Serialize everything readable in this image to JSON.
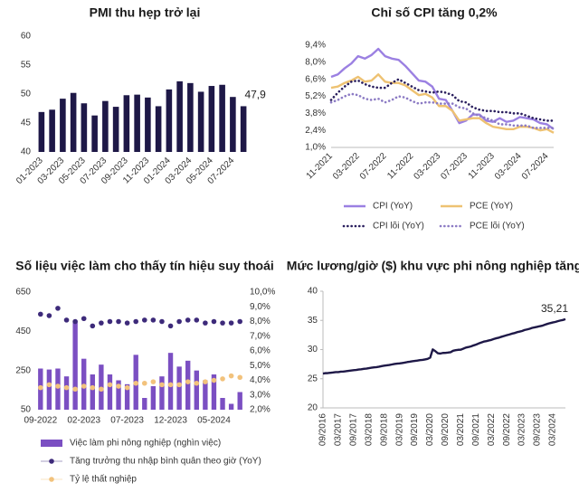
{
  "chart_data": [
    {
      "type": "bar",
      "title": "PMI thu hẹp trở lại",
      "categories": [
        "01-2023",
        null,
        "03-2023",
        null,
        "05-2023",
        null,
        "07-2023",
        null,
        "09-2023",
        null,
        "11-2023",
        null,
        "01-2024",
        null,
        "03-2024",
        null,
        "05-2024",
        null,
        "07-2024",
        null
      ],
      "values": [
        46.9,
        47.3,
        49.2,
        50.2,
        48.4,
        46.3,
        48.8,
        47.8,
        49.8,
        49.9,
        49.4,
        47.9,
        50.8,
        52.2,
        51.9,
        50.4,
        51.4,
        51.6,
        49.5,
        47.9
      ],
      "value_labels": {
        "19": "47,9"
      },
      "color": "#1e1847",
      "ylim": [
        40,
        60
      ],
      "yticks": [
        40,
        45,
        50,
        55,
        60
      ]
    },
    {
      "type": "line",
      "title": "Chỉ số CPI tăng 0,2%",
      "categories": [
        "11-2021",
        null,
        null,
        null,
        "03-2022",
        null,
        null,
        null,
        "07-2022",
        null,
        null,
        null,
        "11-2022",
        null,
        null,
        null,
        "03-2023",
        null,
        null,
        null,
        "07-2023",
        null,
        null,
        null,
        "11-2023",
        null,
        null,
        null,
        "03-2024",
        null,
        null,
        null,
        "07-2024",
        null
      ],
      "series": [
        {
          "name": "CPI (YoY)",
          "color": "#9b80e2",
          "style": "solid",
          "values": [
            6.8,
            7.0,
            7.5,
            7.9,
            8.5,
            8.3,
            8.6,
            9.1,
            8.5,
            8.3,
            8.2,
            7.7,
            7.1,
            6.5,
            6.4,
            6.0,
            5.0,
            4.9,
            4.0,
            3.0,
            3.2,
            3.7,
            3.7,
            3.2,
            3.1,
            3.4,
            3.1,
            3.2,
            3.5,
            3.4,
            3.3,
            3.0,
            2.9,
            2.5
          ]
        },
        {
          "name": "PCE (YoY)",
          "color": "#eec272",
          "style": "solid",
          "values": [
            5.9,
            6.0,
            6.3,
            6.5,
            6.8,
            6.4,
            6.5,
            7.0,
            6.4,
            6.3,
            6.3,
            6.1,
            5.7,
            5.3,
            5.4,
            5.1,
            4.4,
            4.4,
            4.0,
            3.2,
            3.3,
            3.4,
            3.4,
            3.0,
            2.7,
            2.6,
            2.5,
            2.5,
            2.7,
            2.7,
            2.6,
            2.4,
            2.5,
            2.2
          ]
        },
        {
          "name": "CPI lõi (YoY)",
          "color": "#2a1f5e",
          "style": "dotted",
          "values": [
            4.9,
            5.5,
            6.0,
            6.4,
            6.5,
            6.2,
            6.0,
            5.9,
            5.9,
            6.3,
            6.6,
            6.3,
            6.0,
            5.7,
            5.6,
            5.5,
            5.6,
            5.5,
            5.3,
            4.8,
            4.7,
            4.3,
            4.1,
            4.0,
            4.0,
            3.9,
            3.9,
            3.8,
            3.8,
            3.6,
            3.4,
            3.3,
            3.2,
            3.2
          ]
        },
        {
          "name": "PCE lõi (YoY)",
          "color": "#8c7bc4",
          "style": "dotted",
          "values": [
            4.7,
            4.9,
            5.2,
            5.4,
            5.3,
            5.0,
            4.9,
            5.0,
            4.7,
            4.9,
            5.2,
            5.1,
            4.8,
            4.6,
            4.7,
            4.7,
            4.6,
            4.6,
            4.6,
            4.3,
            4.2,
            3.8,
            3.6,
            3.4,
            3.2,
            2.9,
            2.9,
            2.8,
            2.8,
            2.8,
            2.6,
            2.6,
            2.6,
            2.6
          ]
        }
      ],
      "ylim": [
        1,
        9.4
      ],
      "yticks": [
        {
          "value": 1,
          "label": "1,0%"
        },
        {
          "value": 2.4,
          "label": "2,4%"
        },
        {
          "value": 3.8,
          "label": "3,8%"
        },
        {
          "value": 5.2,
          "label": "5,2%"
        },
        {
          "value": 6.6,
          "label": "6,6%"
        },
        {
          "value": 8,
          "label": "8,0%"
        },
        {
          "value": 9.4,
          "label": "9,4%"
        }
      ]
    },
    {
      "type": "combo",
      "title": "Số liệu việc làm cho thấy tín hiệu suy thoái",
      "categories": [
        "09-2022",
        null,
        null,
        null,
        null,
        "02-2023",
        null,
        null,
        null,
        null,
        "07-2023",
        null,
        null,
        null,
        null,
        "12-2023",
        null,
        null,
        null,
        null,
        "05-2024",
        null,
        null,
        null
      ],
      "series": [
        {
          "name": "Việc làm phi nông nghiệp (nghìn việc)",
          "type": "bar",
          "color": "#7b4fc2",
          "values": [
            260,
            255,
            260,
            220,
            500,
            310,
            230,
            280,
            230,
            200,
            180,
            330,
            110,
            170,
            220,
            340,
            270,
            300,
            250,
            200,
            230,
            110,
            80,
            140
          ]
        },
        {
          "name": "Tăng trưởng thu nhập bình quân theo giờ (YoY)",
          "type": "scatter",
          "axis": "y2",
          "color": "#3d2a7a",
          "values": [
            8.5,
            8.4,
            8.9,
            8.1,
            8.0,
            8.2,
            7.7,
            7.9,
            8.0,
            8.0,
            7.9,
            8.0,
            8.1,
            8.1,
            8.0,
            7.7,
            8.0,
            8.1,
            8.1,
            7.9,
            8.0,
            7.9,
            7.9,
            8.0
          ]
        },
        {
          "name": "Tỷ lệ thất nghiệp",
          "type": "scatter",
          "axis": "y2",
          "color": "#f2c27c",
          "values": [
            3.5,
            3.7,
            3.6,
            3.5,
            3.4,
            3.6,
            3.5,
            3.4,
            3.7,
            3.6,
            3.5,
            3.8,
            3.8,
            3.9,
            3.7,
            3.7,
            3.7,
            3.9,
            3.8,
            3.9,
            4.0,
            4.1,
            4.3,
            4.2
          ]
        }
      ],
      "ylim": [
        50,
        650
      ],
      "yticks": [
        50,
        250,
        450,
        650
      ],
      "y2lim": [
        2,
        10
      ],
      "y2ticks": [
        {
          "value": 2,
          "label": "2,0%"
        },
        {
          "value": 3,
          "label": "3,0%"
        },
        {
          "value": 4,
          "label": "4,0%"
        },
        {
          "value": 5,
          "label": "5,0%"
        },
        {
          "value": 6,
          "label": "6,0%"
        },
        {
          "value": 7,
          "label": "7,0%"
        },
        {
          "value": 8,
          "label": "8,0%"
        },
        {
          "value": 9,
          "label": "9,0%"
        },
        {
          "value": 10,
          "label": "10,0%"
        }
      ]
    },
    {
      "type": "line",
      "title": "Mức lương/giờ ($) khu vực phi nông nghiệp tăng",
      "categories": [
        "09/2016",
        null,
        null,
        null,
        null,
        null,
        "03/2017",
        null,
        null,
        null,
        null,
        null,
        "09/2017",
        null,
        null,
        null,
        null,
        null,
        "03/2018",
        null,
        null,
        null,
        null,
        null,
        "09/2018",
        null,
        null,
        null,
        null,
        null,
        "03/2019",
        null,
        null,
        null,
        null,
        null,
        "09/2019",
        null,
        null,
        null,
        null,
        null,
        "03/2020",
        null,
        null,
        null,
        null,
        null,
        "09/2020",
        null,
        null,
        null,
        null,
        null,
        "03/2021",
        null,
        null,
        null,
        null,
        null,
        "09/2021",
        null,
        null,
        null,
        null,
        null,
        "03/2022",
        null,
        null,
        null,
        null,
        null,
        "09/2022",
        null,
        null,
        null,
        null,
        null,
        "03/2023",
        null,
        null,
        null,
        null,
        null,
        "09/2023",
        null,
        null,
        null,
        null,
        null,
        "03/2024",
        null,
        null,
        null,
        null,
        null
      ],
      "values": [
        25.89,
        25.95,
        25.97,
        26.02,
        26.07,
        26.13,
        26.14,
        26.21,
        26.23,
        26.28,
        26.34,
        26.4,
        26.47,
        26.5,
        26.58,
        26.62,
        26.7,
        26.74,
        26.82,
        26.88,
        26.95,
        26.99,
        27.06,
        27.16,
        27.23,
        27.29,
        27.35,
        27.44,
        27.53,
        27.59,
        27.63,
        27.69,
        27.76,
        27.85,
        27.91,
        27.99,
        28.05,
        28.11,
        28.19,
        28.23,
        28.31,
        28.4,
        28.61,
        30.03,
        29.73,
        29.37,
        29.32,
        29.42,
        29.43,
        29.48,
        29.55,
        29.8,
        29.89,
        29.96,
        29.98,
        30.15,
        30.34,
        30.43,
        30.54,
        30.71,
        30.85,
        31.04,
        31.2,
        31.36,
        31.45,
        31.56,
        31.66,
        31.82,
        31.95,
        32.05,
        32.2,
        32.33,
        32.46,
        32.58,
        32.72,
        32.82,
        32.97,
        33.07,
        33.18,
        33.35,
        33.45,
        33.57,
        33.72,
        33.81,
        33.9,
        34.01,
        34.1,
        34.27,
        34.41,
        34.53,
        34.64,
        34.73,
        34.86,
        34.98,
        35.07,
        35.21
      ],
      "value_labels": {
        "95": "35,21"
      },
      "color": "#1e1847",
      "ylim": [
        20,
        40
      ],
      "yticks": [
        20,
        25,
        30,
        35,
        40
      ]
    }
  ]
}
